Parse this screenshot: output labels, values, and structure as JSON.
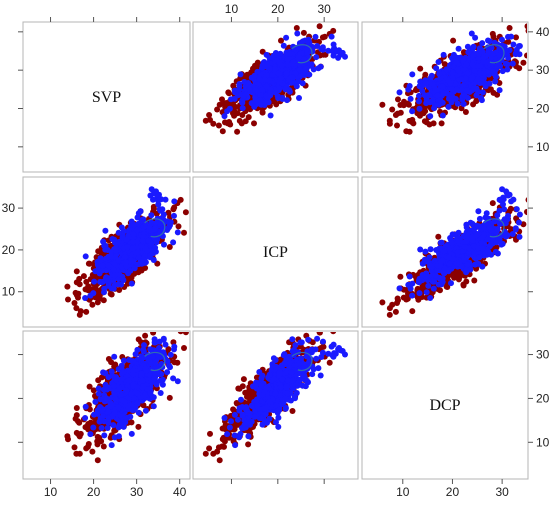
{
  "chart_data": {
    "type": "scatter",
    "title": "",
    "variables": [
      "SVP",
      "ICP",
      "DCP"
    ],
    "ranges": {
      "SVP": [
        5,
        41
      ],
      "ICP": [
        3,
        36
      ],
      "DCP": [
        3,
        34
      ]
    },
    "ticks": {
      "SVP": [
        10,
        20,
        30,
        40
      ],
      "ICP": [
        10,
        20,
        30
      ],
      "DCP": [
        10,
        20,
        30
      ]
    },
    "axis_sides": {
      "top_x": "ICP",
      "right_y_top": "SVP",
      "right_y_bottom": "DCP",
      "left_y_middle": "ICP",
      "bottom_x_left": "SVP",
      "bottom_x_right": "DCP"
    },
    "grid": false,
    "legend": "none",
    "series": [
      {
        "color": "#8b0000",
        "points_approx": 700,
        "SVP": {
          "mean": 27,
          "sd": 4.5
        },
        "ICP": {
          "mean": 18,
          "sd": 4.5
        },
        "DCP": {
          "mean": 21,
          "sd": 5
        },
        "correlations": {
          "SVP_ICP": 0.78,
          "SVP_DCP": 0.72,
          "ICP_DCP": 0.82
        }
      },
      {
        "color": "#1a1aff",
        "points_approx": 500,
        "SVP": {
          "mean": 29,
          "sd": 4
        },
        "ICP": {
          "mean": 20,
          "sd": 4
        },
        "DCP": {
          "mean": 22.5,
          "sd": 4.5
        },
        "correlations": {
          "SVP_ICP": 0.72,
          "SVP_DCP": 0.66,
          "ICP_DCP": 0.78
        },
        "outlier_cluster": {
          "points": [
            {
              "SVP": 34.0,
              "ICP": 33.5,
              "DCP": 31.0
            },
            {
              "SVP": 34.8,
              "ICP": 32.5,
              "DCP": 30.2
            },
            {
              "SVP": 33.5,
              "ICP": 34.5,
              "DCP": 30.0
            },
            {
              "SVP": 35.2,
              "ICP": 33.2,
              "DCP": 31.5
            },
            {
              "SVP": 33.8,
              "ICP": 32.0,
              "DCP": 29.5
            },
            {
              "SVP": 34.5,
              "ICP": 34.0,
              "DCP": 30.8
            },
            {
              "SVP": 35.0,
              "ICP": 31.8,
              "DCP": 29.8
            },
            {
              "SVP": 33.2,
              "ICP": 33.0,
              "DCP": 31.2
            }
          ]
        }
      }
    ],
    "contour_color": "#2f6fb0"
  }
}
